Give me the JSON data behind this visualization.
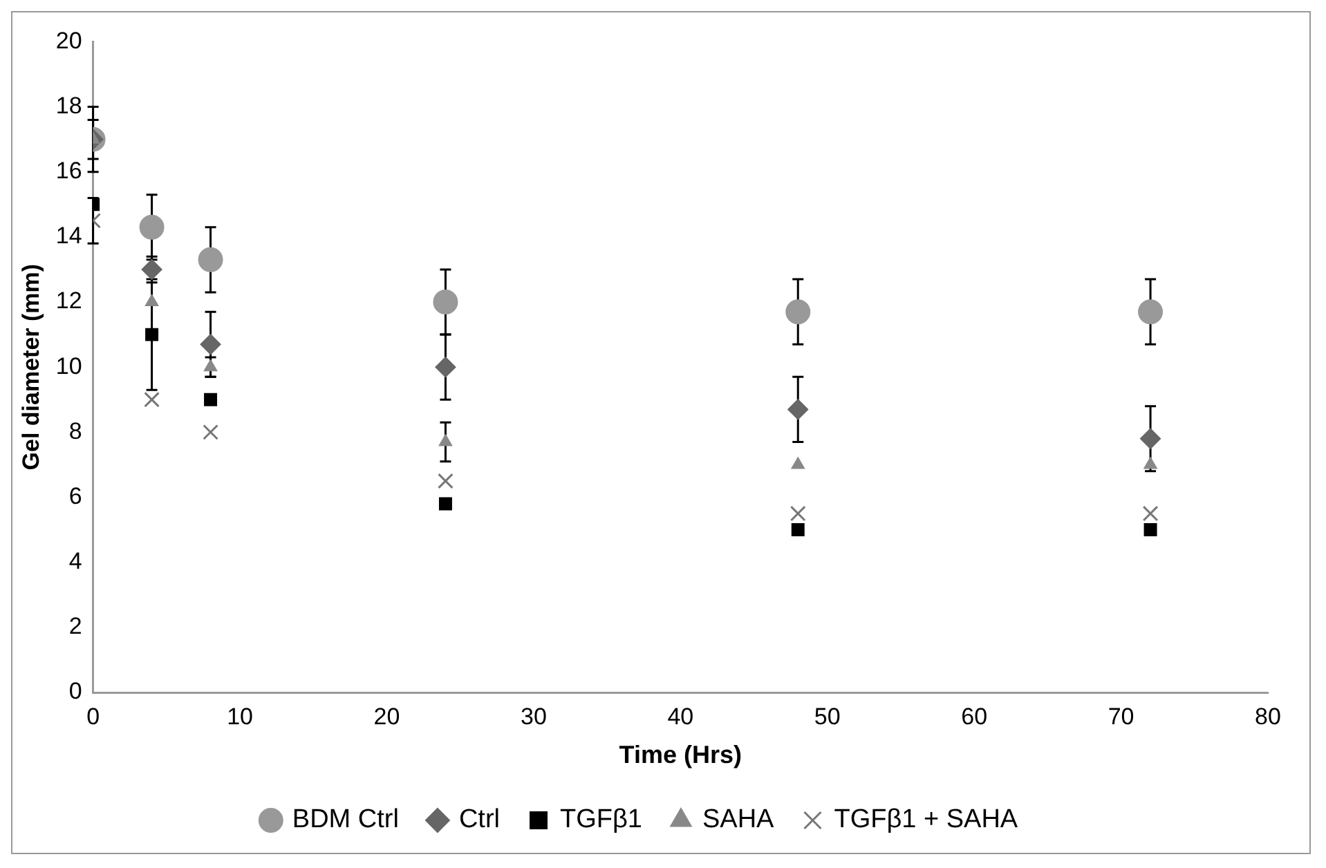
{
  "chart_data": {
    "type": "scatter",
    "xlabel": "Time (Hrs)",
    "ylabel": "Gel diameter (mm)",
    "x": [
      0,
      4,
      8,
      24,
      48,
      72
    ],
    "xlim": [
      0,
      80
    ],
    "xticks": [
      0,
      10,
      20,
      30,
      40,
      50,
      60,
      70,
      80
    ],
    "ylim": [
      0,
      20
    ],
    "yticks": [
      0,
      2,
      4,
      6,
      8,
      10,
      12,
      14,
      16,
      18,
      20
    ],
    "grid": false,
    "legend": "bottom",
    "series": [
      {
        "name": "BDM Ctrl",
        "color": "#999999",
        "marker": "circle",
        "values": [
          17,
          14.3,
          13.3,
          12,
          11.7,
          11.7
        ],
        "errors": [
          1,
          1,
          1,
          1,
          1,
          1
        ]
      },
      {
        "name": "Ctrl",
        "color": "#666666",
        "marker": "diamond",
        "values": [
          17,
          13,
          10.7,
          10,
          8.7,
          7.8
        ],
        "errors": [
          0.6,
          0.4,
          1,
          1,
          1,
          1
        ]
      },
      {
        "name": "TGFβ1",
        "color": "#000000",
        "marker": "square",
        "values": [
          15,
          11,
          9,
          5.8,
          5,
          5
        ],
        "errors": [
          null,
          1.7,
          null,
          null,
          null,
          null
        ]
      },
      {
        "name": "SAHA",
        "color": "#888888",
        "marker": "triangle",
        "values": [
          17,
          12,
          10,
          7.7,
          7,
          7
        ],
        "errors": [
          null,
          null,
          0.3,
          0.6,
          null,
          null
        ]
      },
      {
        "name": "TGFβ1 + SAHA",
        "color": "#777777",
        "marker": "cross",
        "values": [
          14.5,
          9,
          8,
          6.5,
          5.5,
          5.5
        ],
        "errors": [
          0.7,
          null,
          null,
          null,
          null,
          null
        ]
      }
    ]
  }
}
